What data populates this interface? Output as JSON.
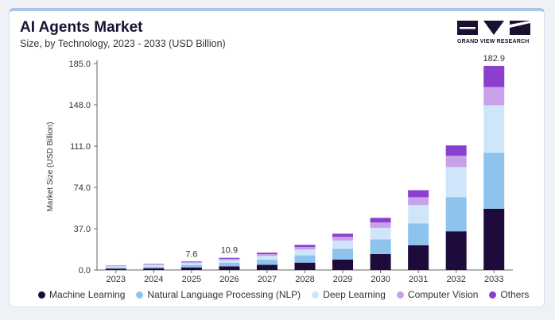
{
  "header": {
    "title": "AI Agents Market",
    "subtitle": "Size, by Technology, 2023 - 2033 (USD Billion)",
    "brand": "GRAND VIEW RESEARCH"
  },
  "colors": {
    "machine_learning": "#1f0b3b",
    "nlp": "#8ec3ee",
    "deep_learning": "#cfe6fa",
    "computer_vision": "#c9a0ea",
    "others": "#8a3fd0",
    "logo": "#1b1030"
  },
  "chart_data": {
    "type": "bar",
    "stacked": true,
    "title": "AI Agents Market",
    "subtitle": "Size, by Technology, 2023 - 2033 (USD Billion)",
    "xlabel": "",
    "ylabel": "Market Size (USD Billion)",
    "ylim": [
      0,
      185
    ],
    "yticks": [
      "0.0",
      "37.0",
      "74.0",
      "111.0",
      "148.0",
      "185.0"
    ],
    "categories": [
      "2023",
      "2024",
      "2025",
      "2026",
      "2027",
      "2028",
      "2029",
      "2030",
      "2031",
      "2032",
      "2033"
    ],
    "series": [
      {
        "name": "Machine Learning",
        "values": [
          1.1,
          1.5,
          2.3,
          3.3,
          4.6,
          6.6,
          9.4,
          14.3,
          22.2,
          34.7,
          54.9
        ]
      },
      {
        "name": "Natural Language Processing (NLP)",
        "values": [
          1.2,
          1.5,
          2.2,
          3.1,
          4.6,
          6.5,
          9.5,
          13.2,
          19.6,
          30.6,
          50.1
        ]
      },
      {
        "name": "Deep Learning",
        "values": [
          1.0,
          1.4,
          1.7,
          2.5,
          3.4,
          5.2,
          7.5,
          10.3,
          16.4,
          26.9,
          42.6
        ]
      },
      {
        "name": "Computer Vision",
        "values": [
          0.4,
          0.6,
          0.8,
          1.1,
          1.6,
          2.3,
          3.3,
          4.8,
          7.0,
          10.2,
          16.4
        ]
      },
      {
        "name": "Others",
        "values": [
          0.3,
          0.4,
          0.6,
          0.9,
          1.3,
          1.9,
          2.8,
          4.1,
          6.3,
          9.2,
          18.9
        ]
      }
    ],
    "data_labels": [
      {
        "category": "2025",
        "text": "7.6"
      },
      {
        "category": "2026",
        "text": "10.9"
      },
      {
        "category": "2033",
        "text": "182.9"
      }
    ],
    "legend_position": "bottom",
    "grid": false
  }
}
